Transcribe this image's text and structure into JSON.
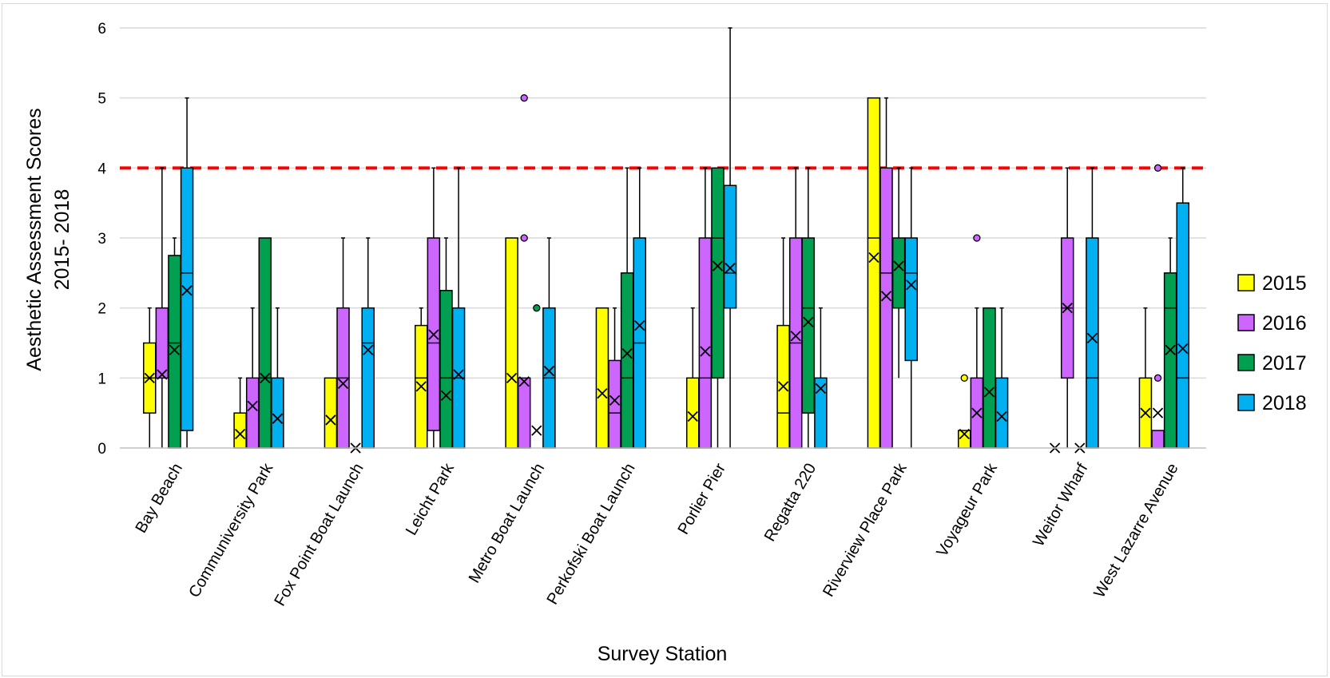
{
  "chart_data": {
    "type": "box",
    "title": "",
    "xlabel": "Survey Station",
    "ylabel_line1": "Aesthetic Assessment Scores",
    "ylabel_line2": "2015- 2018",
    "ylim": [
      0,
      6
    ],
    "yticks": [
      0,
      1,
      2,
      3,
      4,
      5,
      6
    ],
    "grid": true,
    "legend_position": "right",
    "threshold": {
      "value": 4,
      "color": "#ff0000",
      "style": "dashed"
    },
    "series": [
      {
        "name": "2015",
        "color": "#ffff00"
      },
      {
        "name": "2016",
        "color": "#cc66ff"
      },
      {
        "name": "2017",
        "color": "#00a050"
      },
      {
        "name": "2018",
        "color": "#00b0f0"
      }
    ],
    "categories": [
      "Bay Beach",
      "Communiversity Park",
      "Fox Point Boat Launch",
      "Leicht Park",
      "Metro Boat Launch",
      "Perkofski Boat Launch",
      "Porlier Pier",
      "Regatta 220",
      "Riverview Place Park",
      "Voyageur Park",
      "Weitor Wharf",
      "West Lazarre Avenue"
    ],
    "boxes": [
      [
        {
          "min": 0,
          "q1": 0.5,
          "median": 1,
          "q3": 1.5,
          "max": 2,
          "mean": 1,
          "outliers": []
        },
        {
          "min": 0,
          "q1": 1,
          "median": 1,
          "q3": 2,
          "max": 4,
          "mean": 1.05,
          "outliers": []
        },
        {
          "min": 0,
          "q1": 0,
          "median": 1.5,
          "q3": 2.75,
          "max": 3,
          "mean": 1.4,
          "outliers": []
        },
        {
          "min": 0,
          "q1": 0.25,
          "median": 2.5,
          "q3": 4,
          "max": 5,
          "mean": 2.25,
          "outliers": []
        }
      ],
      [
        {
          "min": 0,
          "q1": 0,
          "median": 0,
          "q3": 0.5,
          "max": 1,
          "mean": 0.2,
          "outliers": []
        },
        {
          "min": 0,
          "q1": 0,
          "median": 0,
          "q3": 1,
          "max": 2,
          "mean": 0.6,
          "outliers": []
        },
        {
          "min": 0,
          "q1": 0,
          "median": 1,
          "q3": 3,
          "max": 3,
          "mean": 1,
          "outliers": []
        },
        {
          "min": 0,
          "q1": 0,
          "median": 0,
          "q3": 1,
          "max": 2,
          "mean": 0.42,
          "outliers": []
        }
      ],
      [
        {
          "min": 0,
          "q1": 0,
          "median": 0,
          "q3": 1,
          "max": 1,
          "mean": 0.4,
          "outliers": []
        },
        {
          "min": 0,
          "q1": 0,
          "median": 1,
          "q3": 2,
          "max": 3,
          "mean": 0.92,
          "outliers": []
        },
        {
          "min": 0,
          "q1": 0,
          "median": 0,
          "q3": 0,
          "max": 0,
          "mean": 0,
          "outliers": []
        },
        {
          "min": 0,
          "q1": 0,
          "median": 1.5,
          "q3": 2,
          "max": 3,
          "mean": 1.4,
          "outliers": []
        }
      ],
      [
        {
          "min": 0,
          "q1": 0,
          "median": 1,
          "q3": 1.75,
          "max": 2,
          "mean": 0.88,
          "outliers": []
        },
        {
          "min": 0,
          "q1": 0.25,
          "median": 1.5,
          "q3": 3,
          "max": 4,
          "mean": 1.62,
          "outliers": []
        },
        {
          "min": 0,
          "q1": 0,
          "median": 1,
          "q3": 2.25,
          "max": 3,
          "mean": 0.75,
          "outliers": []
        },
        {
          "min": 0,
          "q1": 0,
          "median": 1,
          "q3": 2,
          "max": 4,
          "mean": 1.05,
          "outliers": []
        }
      ],
      [
        {
          "min": 0,
          "q1": 0,
          "median": 0,
          "q3": 3,
          "max": 3,
          "mean": 1,
          "outliers": []
        },
        {
          "min": 0,
          "q1": 0,
          "median": 0,
          "q3": 1,
          "max": 1,
          "mean": 0.95,
          "outliers": [
            5,
            3
          ]
        },
        {
          "min": 0,
          "q1": 0,
          "median": 0,
          "q3": 0,
          "max": 0,
          "mean": 0.25,
          "outliers": [
            2
          ]
        },
        {
          "min": 0,
          "q1": 0,
          "median": 1,
          "q3": 2,
          "max": 3,
          "mean": 1.1,
          "outliers": []
        }
      ],
      [
        {
          "min": 0,
          "q1": 0,
          "median": 0,
          "q3": 2,
          "max": 2,
          "mean": 0.78,
          "outliers": []
        },
        {
          "min": 0,
          "q1": 0,
          "median": 0.5,
          "q3": 1.25,
          "max": 2,
          "mean": 0.68,
          "outliers": []
        },
        {
          "min": 0,
          "q1": 0,
          "median": 1,
          "q3": 2.5,
          "max": 4,
          "mean": 1.35,
          "outliers": []
        },
        {
          "min": 0,
          "q1": 0,
          "median": 1.5,
          "q3": 3,
          "max": 4,
          "mean": 1.75,
          "outliers": []
        }
      ],
      [
        {
          "min": 0,
          "q1": 0,
          "median": 0,
          "q3": 1,
          "max": 2,
          "mean": 0.45,
          "outliers": []
        },
        {
          "min": 0,
          "q1": 0,
          "median": 1,
          "q3": 3,
          "max": 4,
          "mean": 1.38,
          "outliers": []
        },
        {
          "min": 0,
          "q1": 1,
          "median": 3,
          "q3": 4,
          "max": 4,
          "mean": 2.6,
          "outliers": []
        },
        {
          "min": 0,
          "q1": 2,
          "median": 2.5,
          "q3": 3.75,
          "max": 6,
          "mean": 2.57,
          "outliers": []
        }
      ],
      [
        {
          "min": 0,
          "q1": 0,
          "median": 0.5,
          "q3": 1.75,
          "max": 3,
          "mean": 0.88,
          "outliers": []
        },
        {
          "min": 0,
          "q1": 0,
          "median": 1.5,
          "q3": 3,
          "max": 4,
          "mean": 1.6,
          "outliers": []
        },
        {
          "min": 0,
          "q1": 0.5,
          "median": 2,
          "q3": 3,
          "max": 4,
          "mean": 1.8,
          "outliers": []
        },
        {
          "min": 0,
          "q1": 0,
          "median": 1,
          "q3": 1,
          "max": 2,
          "mean": 0.85,
          "outliers": []
        }
      ],
      [
        {
          "min": 0,
          "q1": 0,
          "median": 3,
          "q3": 5,
          "max": 5,
          "mean": 2.72,
          "outliers": []
        },
        {
          "min": 0,
          "q1": 0,
          "median": 2.5,
          "q3": 4,
          "max": 5,
          "mean": 2.17,
          "outliers": []
        },
        {
          "min": 1,
          "q1": 2,
          "median": 3,
          "q3": 3,
          "max": 4,
          "mean": 2.6,
          "outliers": []
        },
        {
          "min": 0,
          "q1": 1.25,
          "median": 2.5,
          "q3": 3,
          "max": 4,
          "mean": 2.33,
          "outliers": []
        }
      ],
      [
        {
          "min": 0,
          "q1": 0,
          "median": 0.25,
          "q3": 0.25,
          "max": 0.25,
          "mean": 0.2,
          "outliers": [
            1
          ]
        },
        {
          "min": 0,
          "q1": 0,
          "median": 0,
          "q3": 1,
          "max": 2,
          "mean": 0.5,
          "outliers": [
            3
          ]
        },
        {
          "min": 0,
          "q1": 0,
          "median": 0,
          "q3": 2,
          "max": 2,
          "mean": 0.8,
          "outliers": []
        },
        {
          "min": 0,
          "q1": 0,
          "median": 0,
          "q3": 1,
          "max": 2,
          "mean": 0.45,
          "outliers": []
        }
      ],
      [
        {
          "min": 0,
          "q1": 0,
          "median": 0,
          "q3": 0,
          "max": 0,
          "mean": 0,
          "outliers": []
        },
        {
          "min": 0,
          "q1": 1,
          "median": 2,
          "q3": 3,
          "max": 4,
          "mean": 2,
          "outliers": []
        },
        {
          "min": 0,
          "q1": 0,
          "median": 0,
          "q3": 0,
          "max": 0,
          "mean": 0,
          "outliers": []
        },
        {
          "min": 0,
          "q1": 0,
          "median": 1,
          "q3": 3,
          "max": 4,
          "mean": 1.57,
          "outliers": []
        }
      ],
      [
        {
          "min": 0,
          "q1": 0,
          "median": 0,
          "q3": 1,
          "max": 2,
          "mean": 0.5,
          "outliers": []
        },
        {
          "min": 0,
          "q1": 0,
          "median": 0,
          "q3": 0.25,
          "max": 0.25,
          "mean": 0.5,
          "outliers": [
            4,
            1
          ]
        },
        {
          "min": 0,
          "q1": 0,
          "median": 2,
          "q3": 2.5,
          "max": 3,
          "mean": 1.4,
          "outliers": []
        },
        {
          "min": 0,
          "q1": 0,
          "median": 1,
          "q3": 3.5,
          "max": 4,
          "mean": 1.42,
          "outliers": []
        }
      ]
    ]
  }
}
